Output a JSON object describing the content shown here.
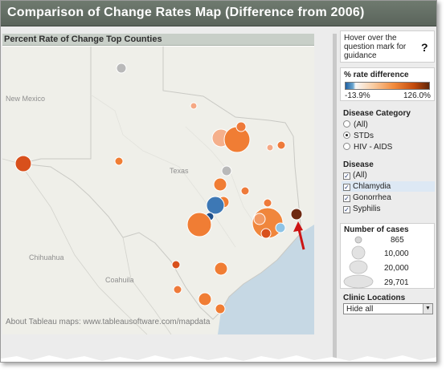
{
  "title": "Comparison of Change Rates Map (Difference from 2006)",
  "map": {
    "header": "Percent Rate of Change Top Counties",
    "labels": {
      "new_mexico": "New Mexico",
      "texas": "Texas",
      "chihuahua": "Chihuahua",
      "coahuila": "Coahuila"
    },
    "attribution": "About Tableau maps: www.tableausoftware.com/mapdata",
    "water_color": "#c6d8e4",
    "land_color": "#efefe9"
  },
  "side": {
    "hover_text": "Hover over the question mark for guidance",
    "question_mark": "?",
    "color_legend": {
      "title": "% rate difference",
      "min": "-13.9%",
      "max": "126.0%"
    },
    "disease_category": {
      "title": "Disease Category",
      "options": [
        "(All)",
        "STDs",
        "HIV - AIDS"
      ],
      "selected": "STDs"
    },
    "disease": {
      "title": "Disease",
      "items": [
        "(All)",
        "Chlamydia",
        "Gonorrhea",
        "Syphilis"
      ],
      "checked": [
        true,
        true,
        true,
        true
      ]
    },
    "number_of_cases": {
      "title": "Number of cases",
      "sizes": [
        "865",
        "10,000",
        "20,000",
        "29,701"
      ]
    },
    "clinic_locations": {
      "title": "Clinic Locations",
      "selected": "Hide all",
      "arrow_icon": "chevron-down-icon"
    }
  },
  "county_markers": [
    {
      "county": "north-panhandle",
      "color": "#b9b9b9"
    },
    {
      "county": "el-paso",
      "color": "#d8501c"
    },
    {
      "county": "amarillo-small",
      "color": "#f5a884"
    },
    {
      "county": "dallas-large",
      "color": "#f07d34"
    },
    {
      "county": "fort-worth",
      "color": "#f29a64"
    },
    {
      "county": "houston-large",
      "color": "#f0863c"
    },
    {
      "county": "austin-blue",
      "color": "#3d78b5"
    },
    {
      "county": "beaumont-dark",
      "color": "#6e2a12"
    },
    {
      "county": "galveston-light",
      "color": "#8ec4e6"
    },
    {
      "county": "bexar",
      "color": "#f07d34"
    }
  ]
}
